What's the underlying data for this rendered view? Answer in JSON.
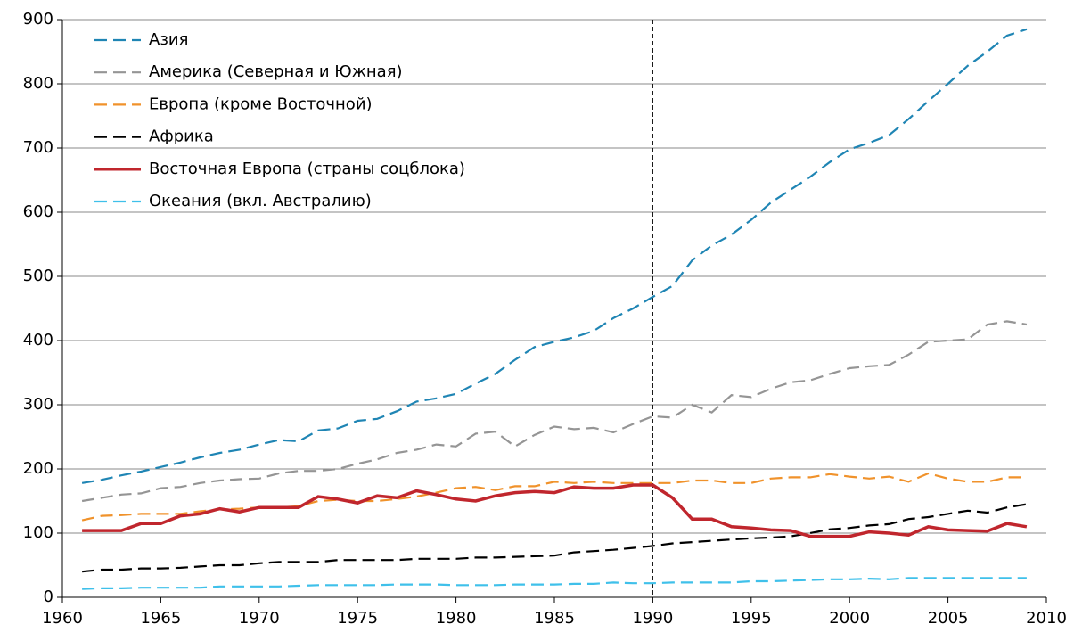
{
  "chart_data": {
    "type": "line",
    "x": [
      1961,
      1962,
      1963,
      1964,
      1965,
      1966,
      1967,
      1968,
      1969,
      1970,
      1971,
      1972,
      1973,
      1974,
      1975,
      1976,
      1977,
      1978,
      1979,
      1980,
      1981,
      1982,
      1983,
      1984,
      1985,
      1986,
      1987,
      1988,
      1989,
      1990,
      1991,
      1992,
      1993,
      1994,
      1995,
      1996,
      1997,
      1998,
      1999,
      2000,
      2001,
      2002,
      2003,
      2004,
      2005,
      2006,
      2007,
      2008,
      2009
    ],
    "series": [
      {
        "name": "Азия",
        "color": "#1f85b4",
        "style": "dashed",
        "values": [
          178,
          183,
          190,
          196,
          203,
          210,
          218,
          225,
          230,
          238,
          245,
          243,
          260,
          263,
          275,
          278,
          290,
          305,
          310,
          317,
          333,
          348,
          370,
          390,
          398,
          405,
          415,
          435,
          450,
          468,
          485,
          525,
          548,
          565,
          588,
          615,
          635,
          655,
          678,
          698,
          708,
          720,
          745,
          773,
          800,
          828,
          850,
          875,
          885
        ]
      },
      {
        "name": "Америка (Северная и Южная)",
        "color": "#959595",
        "style": "dashed",
        "values": [
          150,
          155,
          160,
          162,
          170,
          172,
          178,
          182,
          184,
          185,
          193,
          197,
          197,
          200,
          208,
          215,
          225,
          230,
          238,
          235,
          255,
          258,
          235,
          253,
          266,
          262,
          264,
          257,
          270,
          282,
          280,
          300,
          288,
          315,
          312,
          325,
          335,
          338,
          348,
          357,
          360,
          362,
          378,
          398,
          400,
          402,
          425,
          430,
          425
        ]
      },
      {
        "name": "Европа (кроме Восточной)",
        "color": "#f0922b",
        "style": "dashed",
        "values": [
          120,
          127,
          128,
          130,
          130,
          130,
          134,
          137,
          138,
          140,
          140,
          142,
          150,
          152,
          150,
          150,
          153,
          157,
          163,
          170,
          172,
          167,
          173,
          173,
          180,
          178,
          180,
          178,
          178,
          178,
          178,
          182,
          182,
          178,
          178,
          185,
          187,
          187,
          192,
          188,
          185,
          188,
          180,
          193,
          185,
          180,
          180,
          187,
          187
        ]
      },
      {
        "name": "Африка",
        "color": "#000000",
        "style": "dashed",
        "values": [
          40,
          43,
          43,
          45,
          45,
          46,
          48,
          50,
          50,
          53,
          55,
          55,
          55,
          58,
          58,
          58,
          58,
          60,
          60,
          60,
          62,
          62,
          63,
          64,
          65,
          70,
          72,
          74,
          77,
          80,
          84,
          86,
          88,
          90,
          92,
          93,
          95,
          100,
          106,
          108,
          112,
          114,
          122,
          125,
          130,
          135,
          132,
          140,
          145
        ]
      },
      {
        "name": "Восточная Европа (страны соцблока)",
        "color": "#c0262d",
        "style": "solid",
        "values": [
          104,
          104,
          104,
          115,
          115,
          127,
          130,
          138,
          133,
          140,
          140,
          140,
          157,
          153,
          147,
          158,
          155,
          166,
          160,
          153,
          150,
          158,
          163,
          165,
          163,
          172,
          170,
          170,
          175,
          175,
          155,
          122,
          122,
          110,
          108,
          105,
          104,
          95,
          95,
          95,
          102,
          100,
          97,
          110,
          105,
          104,
          103,
          115,
          110
        ]
      },
      {
        "name": "Океания (вкл. Австралию)",
        "color": "#3fc0ea",
        "style": "dashed",
        "values": [
          13,
          14,
          14,
          15,
          15,
          15,
          15,
          17,
          17,
          17,
          17,
          18,
          19,
          19,
          19,
          19,
          20,
          20,
          20,
          19,
          19,
          19,
          20,
          20,
          20,
          21,
          21,
          23,
          22,
          22,
          23,
          23,
          23,
          23,
          25,
          25,
          26,
          27,
          28,
          28,
          29,
          28,
          30,
          30,
          30,
          30,
          30,
          30,
          30
        ]
      }
    ],
    "xlim": [
      1960,
      2010
    ],
    "xticks": [
      1960,
      1965,
      1970,
      1975,
      1980,
      1985,
      1990,
      1995,
      2000,
      2005,
      2010
    ],
    "ylim": [
      0,
      900
    ],
    "yticks": [
      0,
      100,
      200,
      300,
      400,
      500,
      600,
      700,
      800,
      900
    ],
    "grid": true,
    "vline": 1990,
    "legend": "top-left"
  }
}
